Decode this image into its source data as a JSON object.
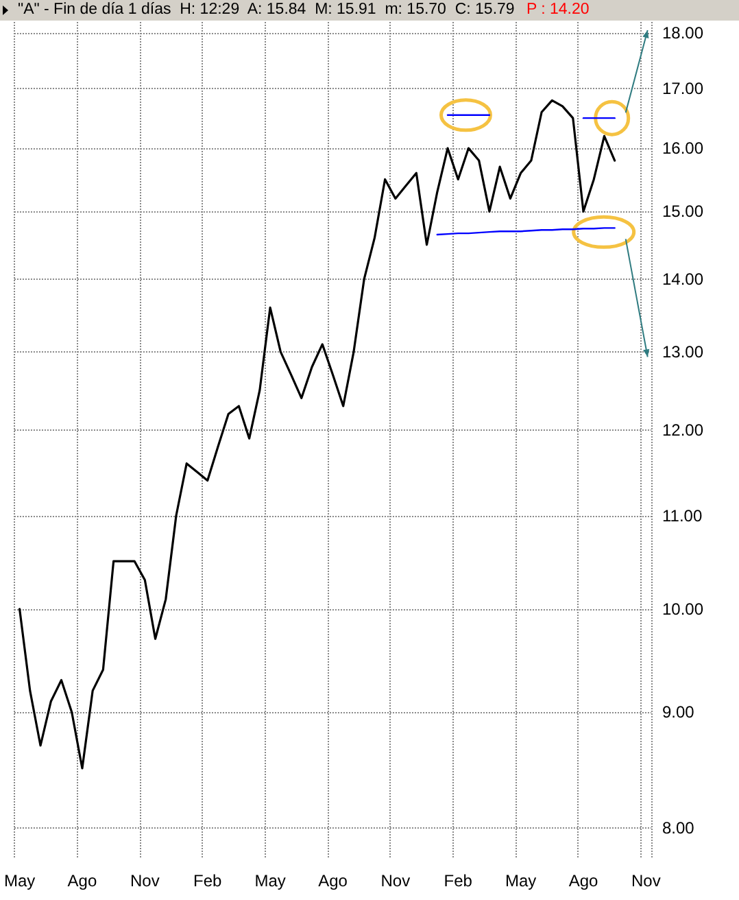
{
  "chart_data": {
    "type": "line",
    "title": "\"A\" - Fin de día 1 días  H: 12:29  A: 15.84  M: 15.91  m: 15.70  C: 15.79",
    "subtitle": "P : 14.20",
    "categories": [
      "May",
      null,
      null,
      null,
      null,
      null,
      "Ago",
      null,
      null,
      null,
      null,
      null,
      "Nov",
      null,
      null,
      null,
      null,
      null,
      "Feb",
      null,
      null,
      null,
      null,
      null,
      "May",
      null,
      null,
      null,
      null,
      null,
      "Ago",
      null,
      null,
      null,
      null,
      null,
      "Nov",
      null,
      null,
      null,
      null,
      null,
      "Feb",
      null,
      null,
      null,
      null,
      null,
      "May",
      null,
      null,
      null,
      null,
      null,
      "Ago",
      null,
      null,
      null,
      null,
      null,
      "Nov"
    ],
    "series": [
      {
        "color": "#000000",
        "values": [
          10.0,
          9.2,
          8.7,
          9.1,
          9.3,
          9.0,
          8.5,
          9.2,
          9.4,
          10.5,
          10.5,
          10.5,
          10.3,
          9.7,
          10.1,
          11.0,
          11.6,
          11.5,
          11.4,
          11.8,
          12.2,
          12.3,
          11.9,
          12.5,
          13.6,
          13.0,
          12.7,
          12.4,
          12.8,
          13.1,
          12.7,
          12.3,
          13.0,
          14.0,
          14.6,
          15.5,
          15.2,
          15.4,
          15.6,
          14.5,
          15.3,
          16.0,
          15.5,
          16.0,
          15.8,
          15.0,
          15.7,
          15.2,
          15.6,
          15.8,
          16.6,
          16.8,
          16.7,
          16.5,
          15.0,
          15.5,
          16.2,
          15.8,
          null,
          null,
          null
        ]
      },
      {
        "color": "#0000ff",
        "values": [
          null,
          null,
          null,
          null,
          null,
          null,
          null,
          null,
          null,
          null,
          null,
          null,
          null,
          null,
          null,
          null,
          null,
          null,
          null,
          null,
          null,
          null,
          null,
          null,
          null,
          null,
          null,
          null,
          null,
          null,
          null,
          null,
          null,
          null,
          null,
          null,
          null,
          null,
          null,
          null,
          null,
          16.55,
          16.55,
          16.55,
          16.55,
          16.55,
          null,
          null,
          null,
          null,
          null,
          null,
          null,
          null,
          null,
          null,
          null,
          null,
          null,
          null,
          null
        ]
      },
      {
        "color": "#0000ff",
        "values": [
          null,
          null,
          null,
          null,
          null,
          null,
          null,
          null,
          null,
          null,
          null,
          null,
          null,
          null,
          null,
          null,
          null,
          null,
          null,
          null,
          null,
          null,
          null,
          null,
          null,
          null,
          null,
          null,
          null,
          null,
          null,
          null,
          null,
          null,
          null,
          null,
          null,
          null,
          null,
          null,
          null,
          null,
          null,
          null,
          null,
          null,
          null,
          null,
          null,
          null,
          null,
          null,
          null,
          null,
          16.5,
          16.5,
          16.5,
          16.5,
          null,
          null,
          null
        ]
      },
      {
        "color": "#0000ff",
        "values": [
          null,
          null,
          null,
          null,
          null,
          null,
          null,
          null,
          null,
          null,
          null,
          null,
          null,
          null,
          null,
          null,
          null,
          null,
          null,
          null,
          null,
          null,
          null,
          null,
          null,
          null,
          null,
          null,
          null,
          null,
          null,
          null,
          null,
          null,
          null,
          null,
          null,
          null,
          null,
          null,
          14.65,
          14.66,
          14.67,
          14.67,
          14.68,
          14.69,
          14.7,
          14.7,
          14.7,
          14.71,
          14.72,
          14.72,
          14.73,
          14.73,
          14.74,
          14.74,
          14.75,
          14.75,
          null,
          null,
          null
        ]
      }
    ],
    "log": true,
    "ylim": [
      7.75,
      18.2
    ],
    "yticks": [
      {
        "value": 8,
        "label": "8.00"
      },
      {
        "value": 9,
        "label": "9.00"
      },
      {
        "value": 10,
        "label": "10.00"
      },
      {
        "value": 11,
        "label": "11.00"
      },
      {
        "value": 12,
        "label": "12.00"
      },
      {
        "value": 13,
        "label": "13.00"
      },
      {
        "value": 14,
        "label": "14.00"
      },
      {
        "value": 15,
        "label": "15.00"
      },
      {
        "value": 16,
        "label": "16.00"
      },
      {
        "value": 17,
        "label": "17.00"
      },
      {
        "value": 18,
        "label": "18.00"
      }
    ],
    "grid": true,
    "line_style": "solid",
    "marker": "none"
  }
}
